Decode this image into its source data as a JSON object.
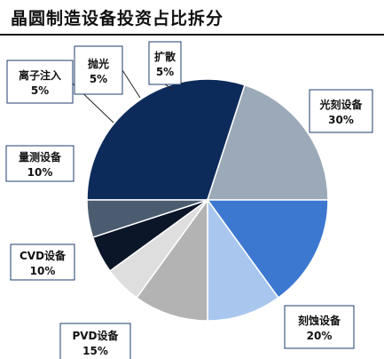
{
  "chart_data": {
    "type": "pie",
    "title": "晶圆制造设备投资占比拆分",
    "start_angle_deg": 180,
    "direction": "clockwise",
    "slices": [
      {
        "label": "光刻设备",
        "value": 30,
        "display": "30%",
        "color": "#0d2b5a"
      },
      {
        "label": "刻蚀设备",
        "value": 20,
        "display": "20%",
        "color": "#9ba9b8"
      },
      {
        "label": "PVD设备",
        "value": 15,
        "display": "15%",
        "color": "#3d78d0"
      },
      {
        "label": "CVD设备",
        "value": 10,
        "display": "10%",
        "color": "#a9c7ee"
      },
      {
        "label": "量测设备",
        "value": 10,
        "display": "10%",
        "color": "#b3b3b3"
      },
      {
        "label": "离子注入",
        "value": 5,
        "display": "5%",
        "color": "#dedede"
      },
      {
        "label": "抛光",
        "value": 5,
        "display": "5%",
        "color": "#0c1629"
      },
      {
        "label": "扩散",
        "value": 5,
        "display": "5%",
        "color": "#4b5c70"
      }
    ]
  }
}
